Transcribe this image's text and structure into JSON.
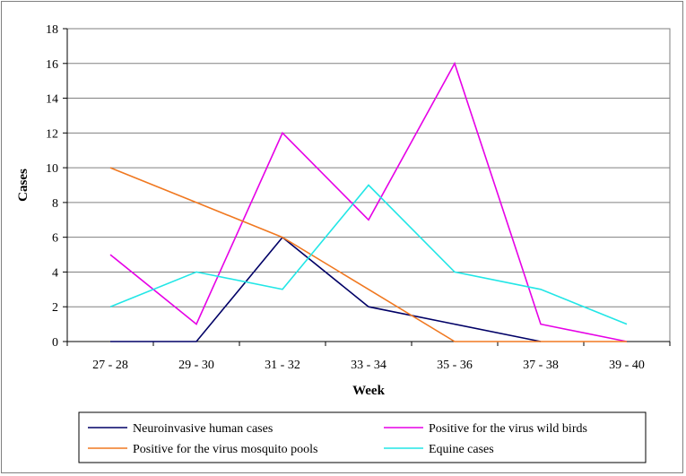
{
  "chart_data": {
    "type": "line",
    "title": "",
    "xlabel": "Week",
    "ylabel": "Cases",
    "categories": [
      "27 - 28",
      "29 - 30",
      "31 - 32",
      "33 - 34",
      "35 - 36",
      "37 - 38",
      "39 - 40"
    ],
    "ylim": [
      0,
      18
    ],
    "yticks": [
      0,
      2,
      4,
      6,
      8,
      10,
      12,
      14,
      16,
      18
    ],
    "grid": true,
    "legend_position": "bottom",
    "series": [
      {
        "name": "Neuroinvasive human cases",
        "color": "#000066",
        "values": [
          0,
          0,
          6,
          2,
          1,
          0,
          null
        ]
      },
      {
        "name": "Positive for the virus wild birds",
        "color": "#e600e6",
        "values": [
          5,
          1,
          12,
          7,
          16,
          1,
          0
        ]
      },
      {
        "name": "Positive for the virus mosquito pools",
        "color": "#f07820",
        "values": [
          10,
          8,
          6,
          3,
          0,
          0,
          0
        ]
      },
      {
        "name": "Equine cases",
        "color": "#22e6e6",
        "values": [
          2,
          4,
          3,
          9,
          4,
          3,
          1
        ]
      }
    ]
  }
}
